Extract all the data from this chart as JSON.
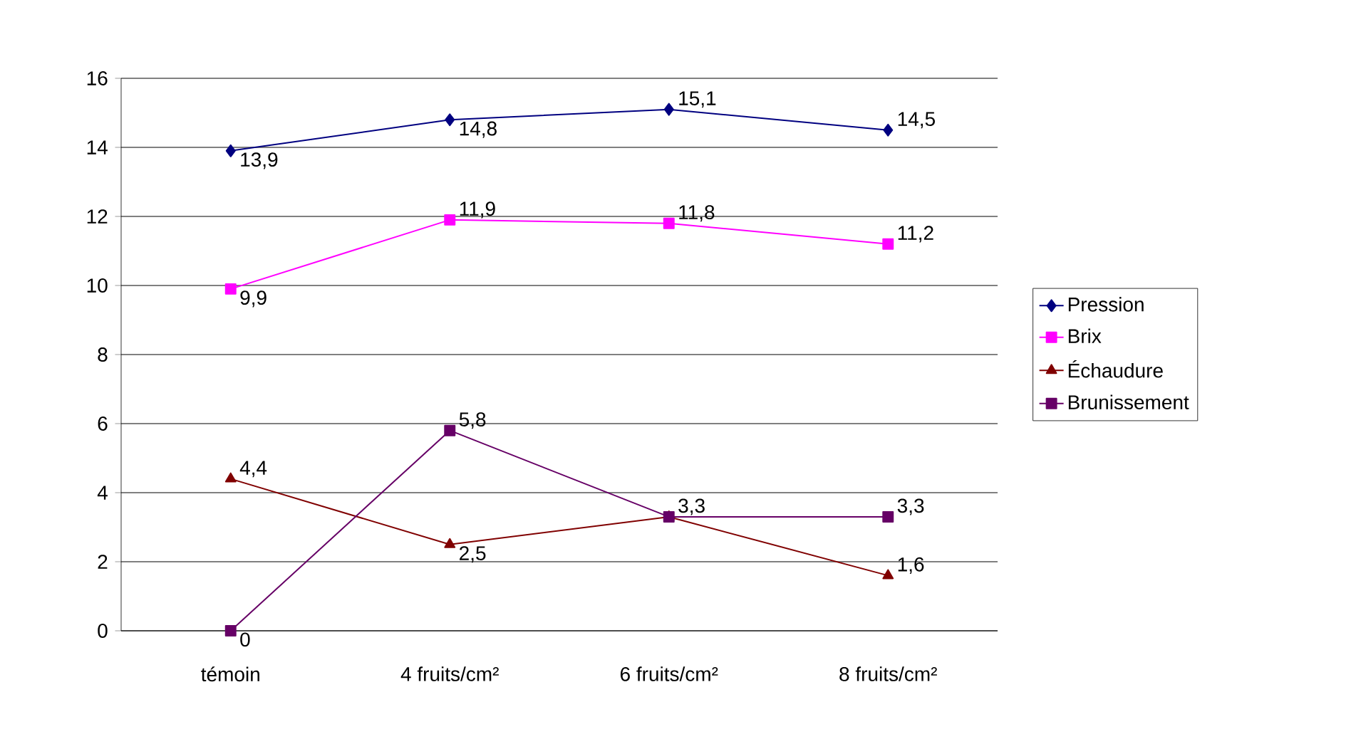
{
  "chart_data": {
    "type": "line",
    "categories": [
      "témoin",
      "4 fruits/cm²",
      "6 fruits/cm²",
      "8 fruits/cm²"
    ],
    "series": [
      {
        "name": "Pression",
        "color": "#000080",
        "marker": "diamond",
        "values": [
          13.9,
          14.8,
          15.1,
          14.5
        ],
        "value_labels": [
          "13,9",
          "14,8",
          "15,1",
          "14,5"
        ]
      },
      {
        "name": "Brix",
        "color": "#ff00ff",
        "marker": "square",
        "values": [
          9.9,
          11.9,
          11.8,
          11.2
        ],
        "value_labels": [
          "9,9",
          "11,9",
          "11,8",
          "11,2"
        ]
      },
      {
        "name": "Échaudure",
        "color": "#800000",
        "marker": "triangle",
        "values": [
          4.4,
          2.5,
          3.3,
          1.6
        ],
        "value_labels": [
          "4,4",
          "2,5",
          null,
          "1,6"
        ]
      },
      {
        "name": "Brunissement",
        "color": "#660066",
        "marker": "square",
        "values": [
          0,
          5.8,
          3.3,
          3.3
        ],
        "value_labels": [
          "0",
          "5,8",
          "3,3",
          "3,3"
        ]
      }
    ],
    "ylim": [
      0,
      16
    ],
    "yticks": [
      0,
      2,
      4,
      6,
      8,
      10,
      12,
      14,
      16
    ],
    "grid": "y",
    "legend": "right"
  }
}
